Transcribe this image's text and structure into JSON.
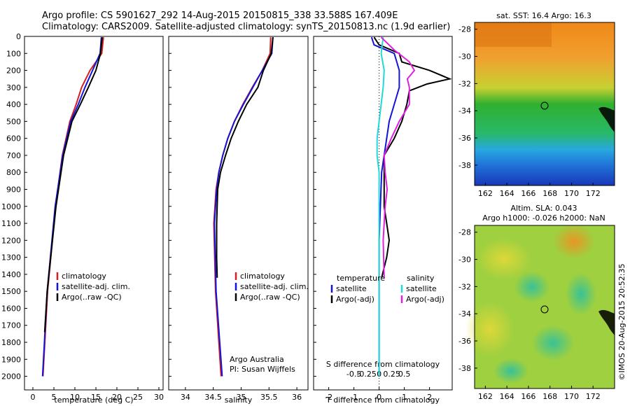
{
  "header": {
    "line1": "Argo profile: CS 5901627_292 14-Aug-2015 20150815_338 33.588S 167.409E",
    "line2": "Climatology: CARS2009. Satellite-adjusted climatology: synTS_20150813.nc (1.9d earlier)"
  },
  "credit": {
    "bottom_left": "Argo Australia",
    "bottom_right": "PI: Susan Wijffels",
    "watermark": "©IMOS 20-Aug-2015 20:52:35"
  },
  "colors": {
    "climatology": "#d42020",
    "satellite": "#1414d8",
    "argo": "#000000",
    "sal_satellite": "#22d8d8",
    "sal_argo": "#e020e0",
    "dotted": "#000000"
  },
  "chart_data": [
    {
      "type": "line",
      "panel": "temperature",
      "xlabel": "temperature (deg C)",
      "xlim": [
        -2,
        31
      ],
      "xticks": [
        "0",
        "5",
        "10",
        "15",
        "20",
        "25",
        "30"
      ],
      "ylabel": "",
      "ylim": [
        2080,
        0
      ],
      "yticks": [
        "0",
        "100",
        "200",
        "300",
        "400",
        "500",
        "600",
        "700",
        "800",
        "900",
        "1000",
        "1100",
        "1200",
        "1300",
        "1400",
        "1500",
        "1600",
        "1700",
        "1800",
        "1900",
        "2000"
      ],
      "legend": [
        "climatology",
        "satellite-adj. clim.",
        "Argo(..raw -QC)"
      ],
      "legend_position": "lower-middle",
      "series": [
        {
          "name": "climatology",
          "depth": [
            5,
            100,
            200,
            300,
            400,
            500,
            700,
            1000,
            1500,
            2000
          ],
          "values": [
            16.8,
            16.4,
            13.6,
            11.6,
            10.3,
            8.8,
            7.0,
            5.4,
            3.5,
            2.4
          ]
        },
        {
          "name": "satellite-adj. clim.",
          "depth": [
            5,
            100,
            200,
            300,
            400,
            500,
            700,
            1000,
            1500,
            2000
          ],
          "values": [
            16.3,
            16.0,
            14.2,
            12.4,
            10.8,
            9.0,
            7.1,
            5.3,
            3.4,
            2.3
          ]
        },
        {
          "name": "Argo(..raw -QC)",
          "depth": [
            5,
            100,
            200,
            300,
            400,
            500,
            700,
            1000,
            1500,
            1740
          ],
          "values": [
            16.5,
            16.1,
            15.0,
            13.2,
            11.3,
            9.3,
            7.3,
            5.5,
            3.4,
            2.8
          ]
        }
      ]
    },
    {
      "type": "line",
      "panel": "salinity",
      "xlabel": "salinity",
      "xlim": [
        33.7,
        36.2
      ],
      "xticks": [
        "34",
        "34.5",
        "35",
        "35.5",
        "36"
      ],
      "ylim": [
        2080,
        0
      ],
      "legend": [
        "climatology",
        "satellite-adj. clim.",
        "Argo(..raw -QC)"
      ],
      "legend_position": "lower-middle",
      "series": [
        {
          "name": "climatology",
          "depth": [
            5,
            100,
            200,
            300,
            400,
            500,
            600,
            700,
            800,
            900,
            1100,
            1500,
            2000
          ],
          "values": [
            35.53,
            35.52,
            35.38,
            35.2,
            35.03,
            34.88,
            34.76,
            34.67,
            34.6,
            34.55,
            34.51,
            34.54,
            34.64
          ]
        },
        {
          "name": "satellite-adj. clim.",
          "depth": [
            5,
            100,
            200,
            300,
            400,
            500,
            600,
            700,
            800,
            900,
            1100,
            1500,
            2000
          ],
          "values": [
            35.57,
            35.55,
            35.38,
            35.21,
            35.04,
            34.88,
            34.76,
            34.67,
            34.6,
            34.56,
            34.52,
            34.55,
            34.66
          ]
        },
        {
          "name": "Argo(..raw -QC)",
          "depth": [
            5,
            100,
            200,
            300,
            400,
            500,
            600,
            700,
            800,
            900,
            1100,
            1300,
            1420
          ],
          "values": [
            35.57,
            35.54,
            35.4,
            35.3,
            35.1,
            34.95,
            34.82,
            34.72,
            34.63,
            34.58,
            34.56,
            34.56,
            34.57
          ]
        }
      ]
    },
    {
      "type": "line",
      "panel": "difference",
      "xlabel": "T difference from climatology",
      "xlabel_top": "S difference from climatology",
      "xlim": [
        -2.6,
        2.9
      ],
      "xticks": [
        "-2",
        "-1",
        "0",
        "1",
        "2"
      ],
      "xticks_top": [
        "-0.5",
        "-0.25",
        "0",
        "0.25",
        "0.5"
      ],
      "ylim": [
        2080,
        0
      ],
      "legend_titles": [
        "temperature",
        "salinity"
      ],
      "legend": [
        "satellite",
        "Argo(-adj)",
        "satellite",
        "Argo(-adj)"
      ],
      "legend_position": "lower-middle",
      "series": [
        {
          "name": "temperature satellite",
          "depth": [
            5,
            50,
            100,
            150,
            200,
            300,
            400,
            500,
            600,
            700,
            800,
            1000,
            1200,
            1500,
            2000
          ],
          "values": [
            -0.3,
            -0.2,
            0.6,
            0.7,
            0.8,
            0.8,
            0.6,
            0.4,
            0.3,
            0.2,
            0.1,
            0.05,
            0.0,
            0.0,
            0.0
          ]
        },
        {
          "name": "temperature Argo(-adj)",
          "depth": [
            5,
            50,
            100,
            150,
            200,
            250,
            280,
            320,
            400,
            500,
            600,
            700,
            800,
            1000,
            1200,
            1300,
            1420
          ],
          "values": [
            -0.2,
            0.0,
            0.8,
            0.9,
            2.0,
            2.8,
            1.9,
            1.2,
            1.1,
            0.9,
            0.6,
            0.2,
            0.2,
            0.2,
            0.4,
            0.3,
            0.1
          ]
        },
        {
          "name": "salinity satellite",
          "depth": [
            5,
            100,
            200,
            300,
            400,
            500,
            600,
            700,
            800,
            1000,
            1500,
            2000
          ],
          "values": [
            0.04,
            0.02,
            0.05,
            0.04,
            0.02,
            0.0,
            -0.02,
            -0.02,
            0.0,
            0.0,
            0.0,
            0.0
          ]
        },
        {
          "name": "salinity Argo(-adj)",
          "depth": [
            5,
            80,
            150,
            200,
            250,
            300,
            400,
            500,
            600,
            700,
            800,
            900,
            1000,
            1200,
            1420
          ],
          "values": [
            0.02,
            0.15,
            0.3,
            0.35,
            0.28,
            0.3,
            0.3,
            0.2,
            0.12,
            0.05,
            0.06,
            0.08,
            0.06,
            0.04,
            0.05
          ]
        }
      ]
    },
    {
      "type": "heatmap",
      "panel": "sst_map",
      "title": "sat. SST: 16.4 Argo: 16.3",
      "xticks": [
        "162",
        "164",
        "166",
        "168",
        "170",
        "172"
      ],
      "yticks": [
        "-28",
        "-30",
        "-32",
        "-34",
        "-36",
        "-38"
      ],
      "xlim": [
        161,
        174
      ],
      "ylim": [
        -39.5,
        -27.5
      ],
      "marker": {
        "lon": 167.409,
        "lat": -33.588
      }
    },
    {
      "type": "heatmap",
      "panel": "sla_map",
      "title": "Altim. SLA: 0.043",
      "subtitle": "Argo h1000: -0.026 h2000: NaN",
      "xticks": [
        "162",
        "164",
        "166",
        "168",
        "170",
        "172"
      ],
      "yticks": [
        "-28",
        "-30",
        "-32",
        "-34",
        "-36",
        "-38"
      ],
      "xlim": [
        161,
        174
      ],
      "ylim": [
        -39.5,
        -27.5
      ],
      "marker": {
        "lon": 167.409,
        "lat": -33.588
      }
    }
  ]
}
